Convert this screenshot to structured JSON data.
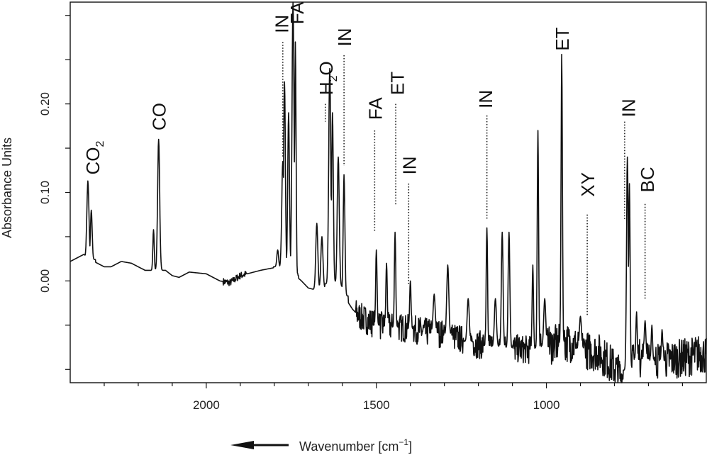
{
  "chart_data": {
    "type": "line",
    "title": "",
    "xlabel": "Wavenumber [cm",
    "xlabel_sup": "−1",
    "xlabel_close": "]",
    "ylabel": "Absorbance Units",
    "xlim": [
      2400,
      530
    ],
    "ylim": [
      -0.115,
      0.315
    ],
    "xticks": [
      2000,
      1500,
      1000
    ],
    "xtick_labels": [
      "2000",
      "1500",
      "1000"
    ],
    "yticks": [
      0.0,
      0.1,
      0.2
    ],
    "ytick_labels": [
      "0.00",
      "0.10",
      "0.20"
    ],
    "minor_yticks": [
      -0.1,
      -0.05,
      0.05,
      0.15,
      0.25,
      0.3
    ],
    "grid": false,
    "x_direction_arrow": true,
    "series": [
      {
        "color": "#111111",
        "baseline": [
          [
            2400,
            0.022
          ],
          [
            2360,
            0.03
          ],
          [
            2330,
            0.022
          ],
          [
            2300,
            0.016
          ],
          [
            2280,
            0.016
          ],
          [
            2250,
            0.022
          ],
          [
            2220,
            0.02
          ],
          [
            2180,
            0.012
          ],
          [
            2150,
            0.012
          ],
          [
            2120,
            0.012
          ],
          [
            2100,
            0.006
          ],
          [
            2080,
            0.004
          ],
          [
            2050,
            0.01
          ],
          [
            2000,
            0.008
          ],
          [
            1960,
            0.0
          ],
          [
            1930,
            -0.002
          ],
          [
            1900,
            0.006
          ],
          [
            1860,
            0.01
          ],
          [
            1840,
            0.012
          ],
          [
            1800,
            0.015
          ],
          [
            1780,
            0.017
          ],
          [
            1750,
            0.01
          ],
          [
            1720,
            0.0
          ],
          [
            1700,
            -0.008
          ],
          [
            1680,
            -0.01
          ],
          [
            1660,
            -0.008
          ],
          [
            1640,
            -0.004
          ],
          [
            1620,
            0.0
          ],
          [
            1610,
            -0.008
          ],
          [
            1590,
            -0.02
          ],
          [
            1570,
            -0.032
          ],
          [
            1550,
            -0.04
          ],
          [
            1500,
            -0.05
          ],
          [
            1450,
            -0.052
          ],
          [
            1400,
            -0.054
          ],
          [
            1350,
            -0.058
          ],
          [
            1300,
            -0.06
          ],
          [
            1250,
            -0.066
          ],
          [
            1200,
            -0.072
          ],
          [
            1150,
            -0.074
          ],
          [
            1100,
            -0.076
          ],
          [
            1050,
            -0.078
          ],
          [
            1000,
            -0.074
          ],
          [
            960,
            -0.07
          ],
          [
            930,
            -0.07
          ],
          [
            900,
            -0.076
          ],
          [
            870,
            -0.08
          ],
          [
            850,
            -0.08
          ],
          [
            820,
            -0.09
          ],
          [
            800,
            -0.098
          ],
          [
            780,
            -0.108
          ],
          [
            760,
            -0.1
          ],
          [
            740,
            -0.09
          ],
          [
            720,
            -0.086
          ],
          [
            700,
            -0.09
          ],
          [
            660,
            -0.09
          ],
          [
            620,
            -0.088
          ],
          [
            580,
            -0.086
          ],
          [
            550,
            -0.082
          ],
          [
            530,
            -0.084
          ]
        ],
        "noise_regions": [
          [
            1950,
            1880,
            0.004
          ],
          [
            1560,
            1000,
            0.016
          ],
          [
            1000,
            530,
            0.022
          ]
        ],
        "peaks": [
          [
            2348,
            0.113,
            3
          ],
          [
            2338,
            0.08,
            2.5
          ],
          [
            2140,
            0.16,
            3
          ],
          [
            2155,
            0.058,
            2
          ],
          [
            1790,
            0.035,
            2.5
          ],
          [
            1775,
            0.135,
            3
          ],
          [
            1770,
            0.225,
            2.5
          ],
          [
            1758,
            0.19,
            2.5
          ],
          [
            1745,
            0.315,
            3
          ],
          [
            1738,
            0.27,
            2
          ],
          [
            1675,
            0.065,
            3
          ],
          [
            1660,
            0.05,
            3
          ],
          [
            1637,
            0.24,
            3
          ],
          [
            1629,
            0.19,
            2.5
          ],
          [
            1612,
            0.14,
            3
          ],
          [
            1595,
            0.12,
            2.5
          ],
          [
            1500,
            0.035,
            2
          ],
          [
            1470,
            0.02,
            2
          ],
          [
            1445,
            0.055,
            2
          ],
          [
            1400,
            0.0,
            2
          ],
          [
            1330,
            -0.015,
            3
          ],
          [
            1290,
            0.018,
            3
          ],
          [
            1230,
            -0.02,
            3
          ],
          [
            1175,
            0.06,
            2
          ],
          [
            1150,
            -0.02,
            3
          ],
          [
            1130,
            0.055,
            2.5
          ],
          [
            1110,
            0.055,
            2.5
          ],
          [
            1040,
            0.018,
            2
          ],
          [
            1025,
            0.17,
            2
          ],
          [
            1005,
            -0.02,
            3
          ],
          [
            955,
            0.256,
            2
          ],
          [
            900,
            -0.04,
            3
          ],
          [
            762,
            0.14,
            2.5
          ],
          [
            756,
            0.11,
            2
          ],
          [
            735,
            -0.035,
            2
          ],
          [
            710,
            -0.045,
            2.5
          ],
          [
            690,
            -0.05,
            2
          ],
          [
            660,
            -0.055,
            2
          ]
        ]
      }
    ],
    "annotations": [
      {
        "text": "CO",
        "sub": "2",
        "x": 2335,
        "y": 0.12,
        "leader": false
      },
      {
        "text": "CO",
        "sub": "",
        "x": 2140,
        "y": 0.17,
        "leader": false
      },
      {
        "text": "IN",
        "sub": "",
        "x": 1780,
        "y": 0.28,
        "leader": true,
        "lx": 1775,
        "ly0": 0.27,
        "ly1": 0.14
      },
      {
        "text": "FA",
        "sub": "",
        "x": 1735,
        "y": 0.29,
        "leader": false
      },
      {
        "text": "H",
        "sub": "2",
        "after": "O",
        "x": 1650,
        "y": 0.21,
        "leader": true,
        "lx": 1650,
        "ly0": 0.2,
        "ly1": 0.18
      },
      {
        "text": "IN",
        "sub": "",
        "x": 1595,
        "y": 0.265,
        "leader": true,
        "lx": 1595,
        "ly0": 0.255,
        "ly1": 0.13
      },
      {
        "text": "FA",
        "sub": "",
        "x": 1505,
        "y": 0.182,
        "leader": true,
        "lx": 1505,
        "ly0": 0.17,
        "ly1": 0.055
      },
      {
        "text": "ET",
        "sub": "",
        "x": 1440,
        "y": 0.21,
        "leader": true,
        "lx": 1443,
        "ly0": 0.2,
        "ly1": 0.085
      },
      {
        "text": "IN",
        "sub": "",
        "x": 1405,
        "y": 0.12,
        "leader": true,
        "lx": 1405,
        "ly0": 0.11,
        "ly1": -0.005
      },
      {
        "text": "IN",
        "sub": "",
        "x": 1180,
        "y": 0.195,
        "leader": true,
        "lx": 1175,
        "ly0": 0.187,
        "ly1": 0.07
      },
      {
        "text": "ET",
        "sub": "",
        "x": 955,
        "y": 0.26,
        "leader": false
      },
      {
        "text": "XY",
        "sub": "",
        "x": 880,
        "y": 0.095,
        "leader": true,
        "lx": 880,
        "ly0": 0.075,
        "ly1": -0.04
      },
      {
        "text": "IN",
        "sub": "",
        "x": 760,
        "y": 0.185,
        "leader": true,
        "lx": 770,
        "ly0": 0.18,
        "ly1": 0.07
      },
      {
        "text": "BC",
        "sub": "",
        "x": 705,
        "y": 0.1,
        "leader": true,
        "lx": 710,
        "ly0": 0.087,
        "ly1": -0.02
      }
    ]
  }
}
